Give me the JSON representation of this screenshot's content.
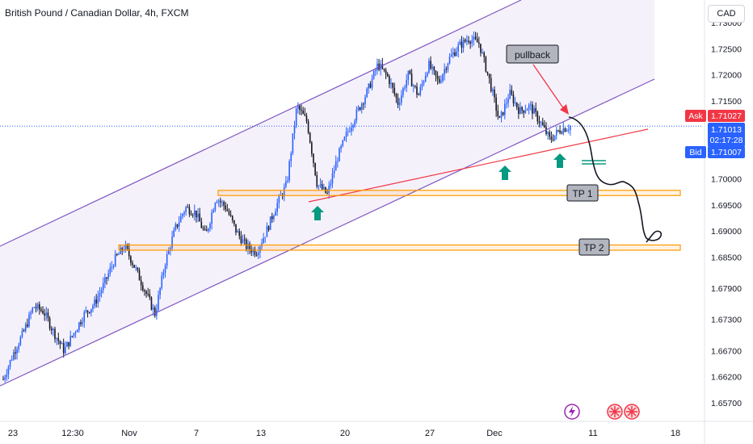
{
  "header": {
    "title": "British Pound / Canadian Dollar, 4h, FXCM",
    "currency_button": "CAD"
  },
  "price_tags": {
    "ask_label": "Ask",
    "ask_value": "1.71027",
    "last_value": "1.71013",
    "countdown": "02:17:28",
    "bid_label": "Bid",
    "bid_value": "1.71007"
  },
  "annotations": {
    "pullback": "pullback",
    "tp1": "TP 1",
    "tp2": "TP 2"
  },
  "colors": {
    "up": "#2962ff",
    "down": "#131722",
    "channel": "#7e57c2",
    "channel_fill": "#f3eefa",
    "support_line": "#f23645",
    "zone": "#ff9800",
    "arrow_green": "#089981",
    "ask": "#f23645",
    "bid": "#2962ff"
  },
  "chart_data": {
    "type": "candlestick",
    "symbol": "GBP/CAD",
    "timeframe": "4h",
    "y_ticks": [
      "1.73000",
      "1.72500",
      "1.72000",
      "1.71500",
      "1.71000",
      "1.70000",
      "1.69500",
      "1.69000",
      "1.68500",
      "1.67900",
      "1.67300",
      "1.66700",
      "1.66200",
      "1.65700"
    ],
    "x_ticks": [
      "23",
      "12:30",
      "Nov",
      "7",
      "13",
      "20",
      "27",
      "Dec",
      "11",
      "18"
    ],
    "ylim": [
      1.6545,
      1.7325
    ],
    "last_price": 1.71013,
    "close_path": [
      1.6615,
      1.6665,
      1.6705,
      1.6755,
      1.6745,
      1.6705,
      1.667,
      1.6705,
      1.674,
      1.676,
      1.68,
      1.6845,
      1.687,
      1.683,
      1.6785,
      1.674,
      1.684,
      1.6905,
      1.6945,
      1.6935,
      1.689,
      1.6965,
      1.6945,
      1.69,
      1.687,
      1.686,
      1.69,
      1.695,
      1.699,
      1.714,
      1.711,
      1.699,
      1.697,
      1.704,
      1.709,
      1.713,
      1.717,
      1.722,
      1.7195,
      1.7145,
      1.72,
      1.716,
      1.722,
      1.7185,
      1.723,
      1.7255,
      1.727,
      1.726,
      1.719,
      1.711,
      1.7165,
      1.713,
      1.714,
      1.711,
      1.7075,
      1.7095,
      1.7101
    ],
    "zones": [
      {
        "label": "TP 1",
        "low": 1.6968,
        "high": 1.6978
      },
      {
        "label": "TP 2",
        "low": 1.6863,
        "high": 1.6873
      }
    ]
  }
}
